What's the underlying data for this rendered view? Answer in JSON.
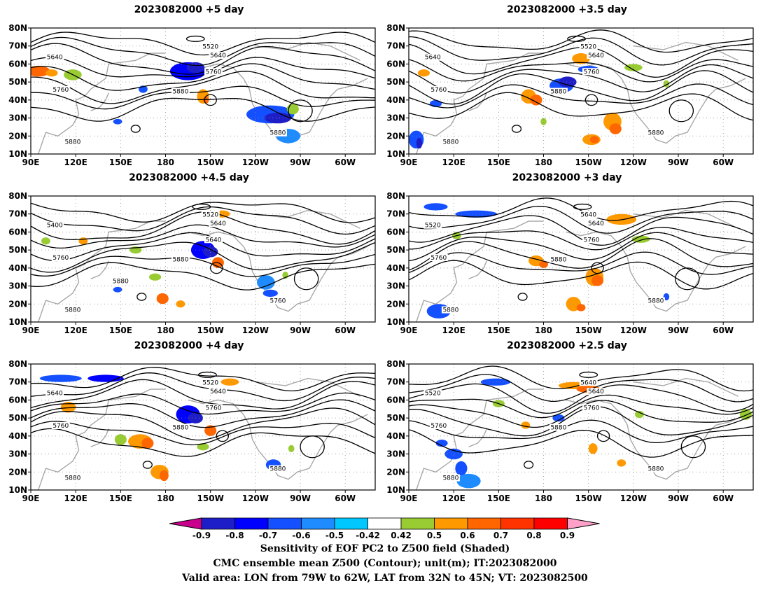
{
  "panels": [
    {
      "id": "p1",
      "title": "2023082000  +5 day",
      "contour_labels": [
        "5640",
        "5520",
        "5640",
        "5760",
        "5760",
        "5880",
        "5880",
        "5880"
      ]
    },
    {
      "id": "p2",
      "title": "2023082000  +3.5 day",
      "contour_labels": [
        "5640",
        "5520",
        "5640",
        "5760",
        "5760",
        "5880",
        "5880",
        "5880"
      ]
    },
    {
      "id": "p3",
      "title": "2023082000  +4.5 day",
      "contour_labels": [
        "5400",
        "5520",
        "5640",
        "5640",
        "5760",
        "5880",
        "5760",
        "5880",
        "5880"
      ]
    },
    {
      "id": "p4",
      "title": "2023082000  +3 day",
      "contour_labels": [
        "5520",
        "5640",
        "5640",
        "5760",
        "5760",
        "5880",
        "5880",
        "5880"
      ]
    },
    {
      "id": "p5",
      "title": "2023082000  +4 day",
      "contour_labels": [
        "5640",
        "5520",
        "5640",
        "5760",
        "5760",
        "5880",
        "5880",
        "5880"
      ]
    },
    {
      "id": "p6",
      "title": "2023082000  +2.5 day",
      "contour_labels": [
        "5520",
        "5640",
        "5640",
        "5760",
        "5760",
        "5880",
        "5880",
        "5880"
      ]
    }
  ],
  "map": {
    "lat_ticks": [
      "10N",
      "20N",
      "30N",
      "40N",
      "50N",
      "60N",
      "70N",
      "80N"
    ],
    "lon_ticks": [
      "90E",
      "120E",
      "150E",
      "180",
      "150W",
      "120W",
      "90W",
      "60W"
    ],
    "lon_range": [
      90,
      320
    ],
    "lat_range": [
      10,
      80
    ]
  },
  "colorbar": {
    "labels": [
      "-0.9",
      "-0.8",
      "-0.7",
      "-0.6",
      "-0.5",
      "-0.42",
      "0.42",
      "0.5",
      "0.6",
      "0.7",
      "0.8",
      "0.9"
    ],
    "colors": [
      "#c8008c",
      "#1e1ec8",
      "#0000ff",
      "#1450ff",
      "#1e8cff",
      "#00c8ff",
      "#ffffff",
      "#99cc33",
      "#ff9900",
      "#ff6600",
      "#ff3300",
      "#ff0000",
      "#ffa0c8"
    ]
  },
  "captions": {
    "line1": "Sensitivity of EOF PC2 to Z500 field (Shaded)",
    "line2": "CMC ensemble mean Z500 (Contour); unit(m); IT:2023082000",
    "line3": "Valid area: LON from 79W to 62W, LAT from 32N to 45N; VT: 2023082500"
  }
}
